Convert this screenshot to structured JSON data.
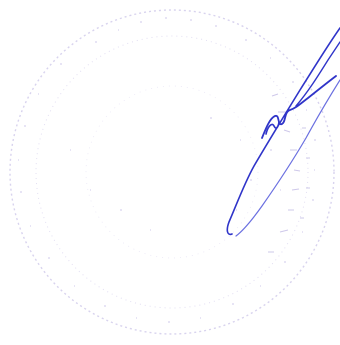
{
  "colors": {
    "background": "#ffffff",
    "stamp": "#b9b2dc",
    "stamp_faint": "#d8d3ee",
    "signature": "#2f34c9",
    "signature_faint": "#6a6fe0"
  },
  "icons": {
    "stamp": "faded-round-seal-icon",
    "signature": "handwritten-signature-icon"
  }
}
